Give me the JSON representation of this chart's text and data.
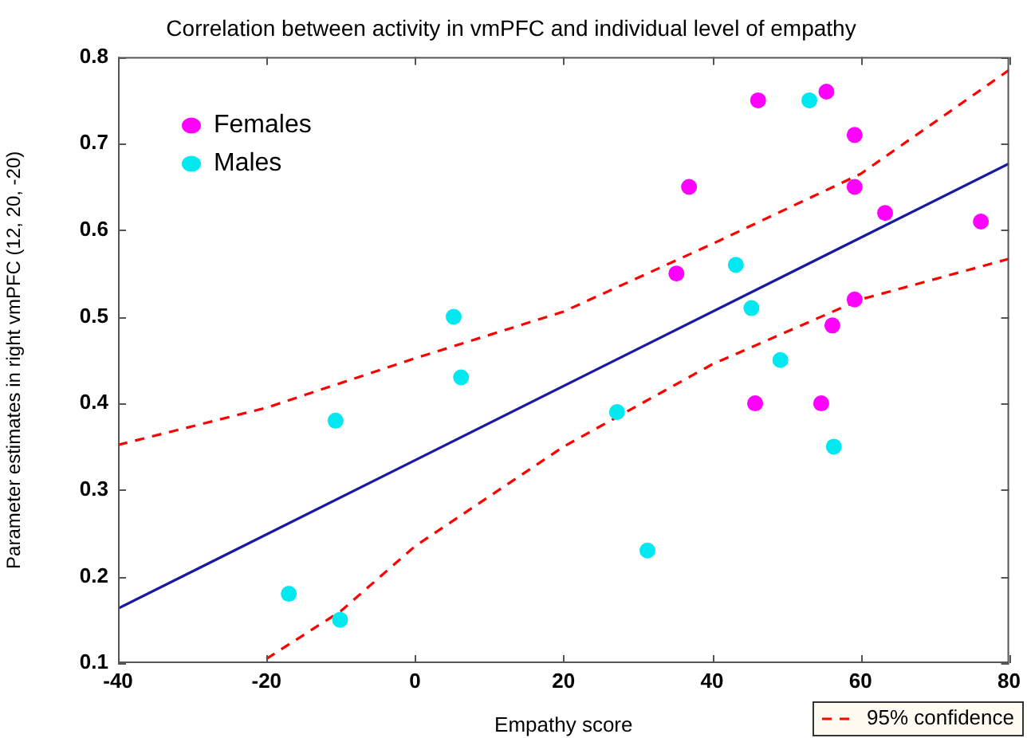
{
  "chart_data": {
    "type": "scatter",
    "title": "Correlation between activity in vmPFC and individual level of empathy",
    "xlabel": "Empathy score",
    "ylabel": "Parameter estimates in right vmPFC (12, 20, -20)",
    "xlim": [
      -40,
      80
    ],
    "ylim": [
      0.1,
      0.8
    ],
    "xticks": [
      -40,
      -20,
      0,
      20,
      40,
      60,
      80
    ],
    "yticks": [
      0.1,
      0.2,
      0.3,
      0.4,
      0.5,
      0.6,
      0.7,
      0.8
    ],
    "grid": false,
    "legend": "top left",
    "marker": "circle",
    "annotations": [
      "95% confidence"
    ],
    "series": [
      {
        "name": "Females",
        "color": "#ff00ff",
        "x": [
          46.2,
          55.4,
          59.2,
          36.9,
          59.2,
          63.3,
          76.2,
          35.2,
          59.2,
          56.2,
          45.8,
          54.7
        ],
        "values": [
          0.75,
          0.76,
          0.71,
          0.65,
          0.65,
          0.62,
          0.61,
          0.55,
          0.52,
          0.49,
          0.4,
          0.4
        ]
      },
      {
        "name": "Males",
        "color": "#00e8f0",
        "x": [
          53.1,
          43.2,
          45.3,
          49.2,
          5.2,
          6.2,
          -10.7,
          27.2,
          56.4,
          31.3,
          -17,
          -10.1
        ],
        "values": [
          0.75,
          0.56,
          0.51,
          0.45,
          0.5,
          0.43,
          0.38,
          0.39,
          0.35,
          0.23,
          0.18,
          0.15
        ]
      },
      {
        "type": "line",
        "color": "#1a1aa0",
        "marker": "none",
        "line_style": "solid",
        "x": [
          -40,
          80
        ],
        "values": [
          0.163,
          0.677
        ]
      },
      {
        "type": "line",
        "color": "#ff0000",
        "marker": "none",
        "line_style": "dashed",
        "x": [
          -40,
          -20,
          0,
          20,
          40,
          60,
          80
        ],
        "values": [
          0.352,
          0.395,
          0.452,
          0.506,
          0.584,
          0.665,
          0.785
        ]
      },
      {
        "type": "line",
        "color": "#ff0000",
        "marker": "none",
        "line_style": "dashed",
        "x": [
          -20,
          -10,
          0,
          20,
          40,
          60,
          80
        ],
        "values": [
          0.105,
          0.16,
          0.235,
          0.35,
          0.445,
          0.52,
          0.567
        ]
      }
    ]
  }
}
